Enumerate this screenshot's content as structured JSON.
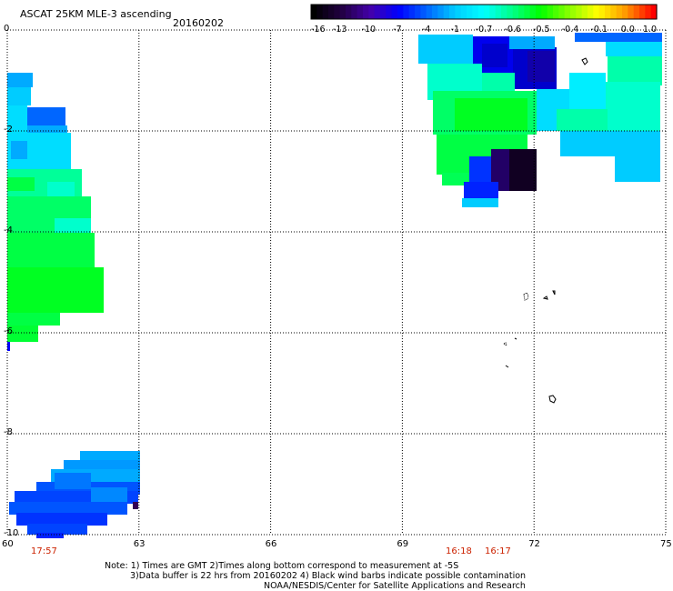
{
  "header": {
    "title": "ASCAT 25KM MLE-3 ascending",
    "date": "20160202"
  },
  "colorbar": {
    "labels": [
      "-16",
      "-13",
      "-10",
      "-7",
      "-4",
      "-1",
      "-0.7",
      "-0.6",
      "-0.5",
      "-0.4",
      "-0.1",
      "0.0",
      "1.0"
    ],
    "colors": [
      "#000000",
      "#220044",
      "#4400aa",
      "#0000ff",
      "#0066ff",
      "#00ccff",
      "#00ffff",
      "#00ff88",
      "#00ff00",
      "#88ff00",
      "#ffff00",
      "#ff9900",
      "#ff0000"
    ]
  },
  "axes": {
    "x_ticks": [
      "60",
      "63",
      "66",
      "69",
      "72",
      "75"
    ],
    "y_ticks": [
      "0",
      "-2",
      "-4",
      "-6",
      "-8",
      "-10"
    ]
  },
  "times": {
    "left": "17:57",
    "right1": "16:18",
    "right2": "16:17"
  },
  "notes": {
    "line1": "Note: 1) Times are GMT 2)Times along bottom correspond to measurement at -5S",
    "line2": "3)Data buffer is 22 hrs from 20160202 4) Black wind barbs indicate possible contamination",
    "line3": "NOAA/NESDIS/Center for Satellite Applications and Research"
  }
}
